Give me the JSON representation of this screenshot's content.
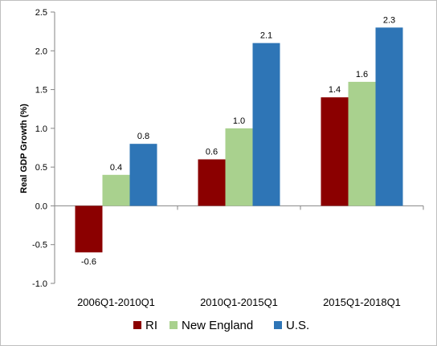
{
  "chart_data": {
    "type": "bar",
    "ylabel": "Real GDP Growth (%)",
    "ylim": [
      -1.0,
      2.5
    ],
    "ytick_step": 0.5,
    "grid": false,
    "legend_position": "bottom",
    "categories": [
      "2006Q1-2010Q1",
      "2010Q1-2015Q1",
      "2015Q1-2018Q1"
    ],
    "series": [
      {
        "name": "RI",
        "color": "#8b0000",
        "values": [
          -0.6,
          0.6,
          1.4
        ]
      },
      {
        "name": "New England",
        "color": "#a9d18e",
        "values": [
          0.4,
          1.0,
          1.6
        ]
      },
      {
        "name": "U.S.",
        "color": "#2e75b6",
        "values": [
          0.8,
          2.1,
          2.3
        ]
      }
    ]
  }
}
